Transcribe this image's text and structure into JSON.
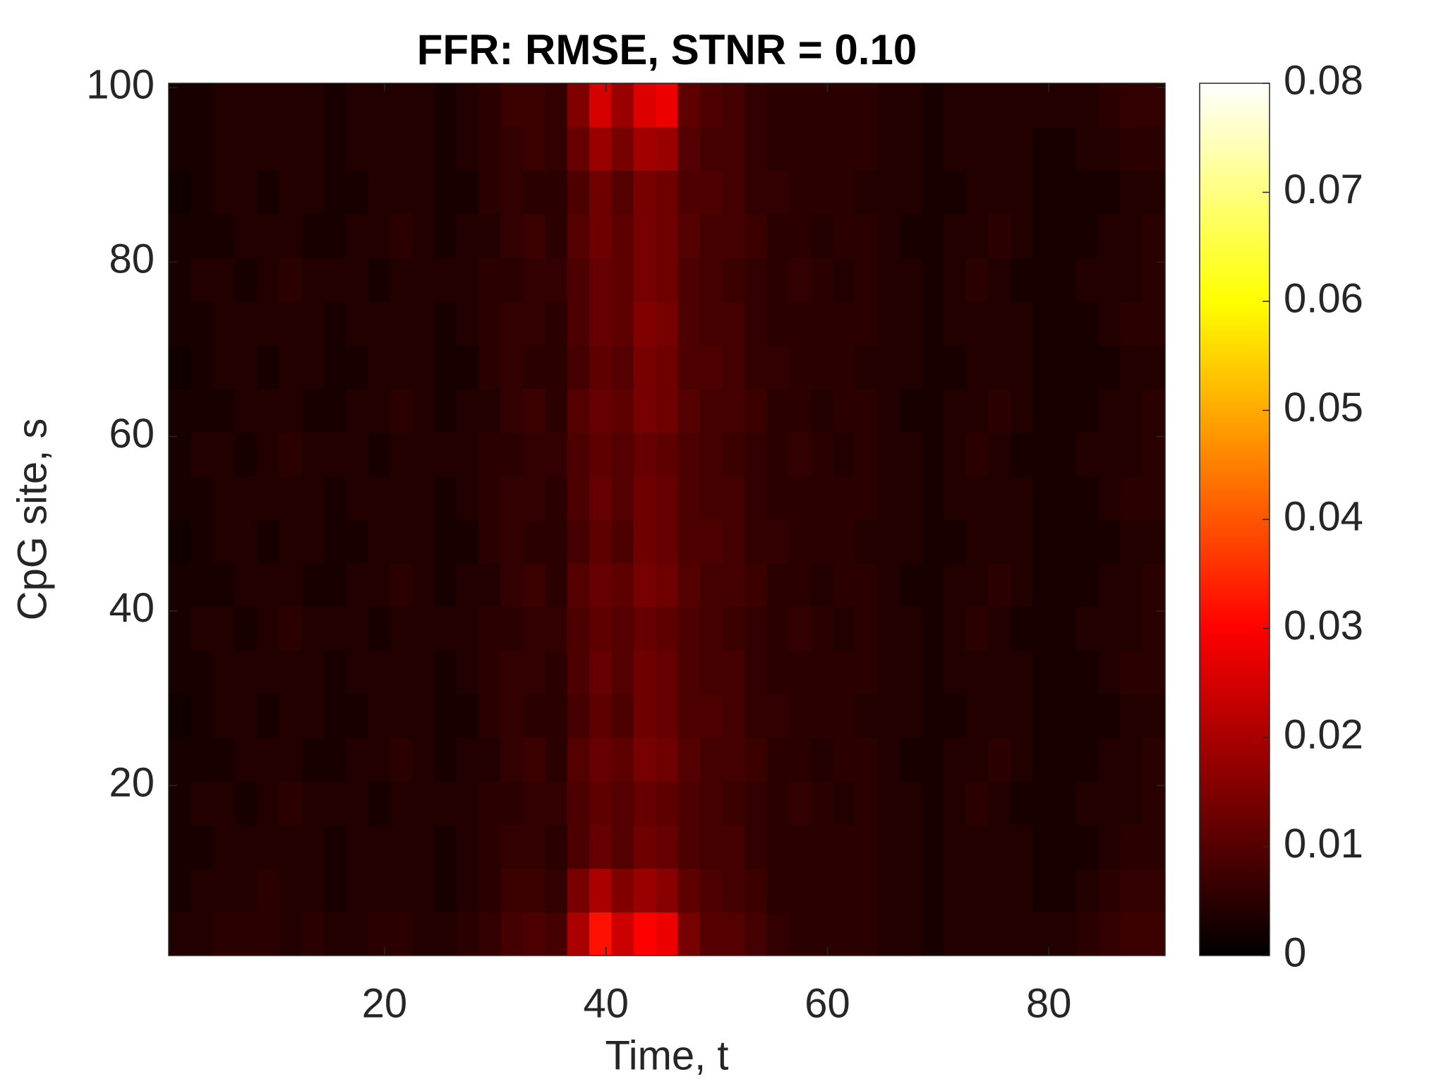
{
  "chart_data": {
    "type": "heatmap",
    "title": "FFR: RMSE, STNR = 0.10",
    "xlabel": "Time, t",
    "ylabel": "CpG site, s",
    "xlim": [
      0.5,
      90.5
    ],
    "ylim": [
      0.5,
      100.5
    ],
    "xticks": [
      20,
      40,
      60,
      80
    ],
    "yticks": [
      20,
      40,
      60,
      80,
      100
    ],
    "colormap": "hot",
    "clim": [
      0,
      0.08
    ],
    "colorbar_ticks": [
      0,
      0.01,
      0.02,
      0.03,
      0.04,
      0.05,
      0.06,
      0.07,
      0.08
    ],
    "x": [
      1.5,
      3.5,
      5.5,
      7.5,
      9.5,
      11.5,
      13.5,
      15.5,
      17.5,
      19.5,
      21.5,
      23.5,
      25.5,
      27.5,
      29.5,
      31.5,
      33.5,
      35.5,
      37.5,
      39.5,
      41.5,
      43.5,
      45.5,
      47.5,
      49.5,
      51.5,
      53.5,
      55.5,
      57.5,
      59.5,
      61.5,
      63.5,
      65.5,
      67.5,
      69.5,
      71.5,
      73.5,
      75.5,
      77.5,
      79.5,
      81.5,
      83.5,
      85.5,
      87.5,
      89.5
    ],
    "y": [
      3,
      8,
      13,
      18,
      23,
      28,
      33,
      38,
      43,
      48,
      53,
      58,
      63,
      68,
      73,
      78,
      83,
      88,
      93,
      98
    ],
    "z": [
      [
        0.004,
        0.004,
        0.005,
        0.005,
        0.005,
        0.004,
        0.005,
        0.004,
        0.004,
        0.005,
        0.005,
        0.004,
        0.004,
        0.005,
        0.006,
        0.008,
        0.009,
        0.008,
        0.02,
        0.032,
        0.024,
        0.03,
        0.028,
        0.014,
        0.01,
        0.01,
        0.008,
        0.006,
        0.005,
        0.005,
        0.005,
        0.005,
        0.004,
        0.004,
        0.003,
        0.004,
        0.004,
        0.004,
        0.004,
        0.004,
        0.004,
        0.005,
        0.006,
        0.007,
        0.007
      ],
      [
        0.003,
        0.004,
        0.004,
        0.004,
        0.005,
        0.004,
        0.004,
        0.003,
        0.004,
        0.004,
        0.004,
        0.004,
        0.003,
        0.004,
        0.005,
        0.007,
        0.007,
        0.006,
        0.014,
        0.02,
        0.015,
        0.018,
        0.016,
        0.011,
        0.009,
        0.008,
        0.007,
        0.005,
        0.005,
        0.005,
        0.005,
        0.005,
        0.004,
        0.004,
        0.003,
        0.004,
        0.004,
        0.004,
        0.004,
        0.003,
        0.003,
        0.004,
        0.005,
        0.006,
        0.006
      ],
      [
        0.003,
        0.003,
        0.004,
        0.004,
        0.004,
        0.004,
        0.004,
        0.003,
        0.004,
        0.004,
        0.004,
        0.004,
        0.003,
        0.004,
        0.005,
        0.006,
        0.006,
        0.005,
        0.009,
        0.012,
        0.01,
        0.013,
        0.012,
        0.009,
        0.008,
        0.008,
        0.006,
        0.005,
        0.005,
        0.005,
        0.005,
        0.005,
        0.004,
        0.004,
        0.003,
        0.004,
        0.004,
        0.004,
        0.004,
        0.003,
        0.003,
        0.003,
        0.004,
        0.005,
        0.005
      ],
      [
        0.003,
        0.004,
        0.004,
        0.003,
        0.004,
        0.005,
        0.004,
        0.004,
        0.004,
        0.003,
        0.004,
        0.004,
        0.004,
        0.004,
        0.005,
        0.005,
        0.006,
        0.006,
        0.009,
        0.011,
        0.01,
        0.012,
        0.011,
        0.009,
        0.008,
        0.007,
        0.006,
        0.005,
        0.006,
        0.005,
        0.004,
        0.005,
        0.004,
        0.004,
        0.003,
        0.004,
        0.005,
        0.004,
        0.003,
        0.003,
        0.003,
        0.004,
        0.004,
        0.004,
        0.005
      ],
      [
        0.003,
        0.003,
        0.003,
        0.004,
        0.004,
        0.004,
        0.003,
        0.003,
        0.004,
        0.004,
        0.005,
        0.004,
        0.003,
        0.004,
        0.004,
        0.006,
        0.007,
        0.005,
        0.01,
        0.012,
        0.011,
        0.014,
        0.013,
        0.01,
        0.008,
        0.008,
        0.007,
        0.005,
        0.005,
        0.004,
        0.005,
        0.005,
        0.004,
        0.003,
        0.003,
        0.004,
        0.004,
        0.005,
        0.004,
        0.003,
        0.003,
        0.003,
        0.004,
        0.004,
        0.005
      ],
      [
        0.002,
        0.003,
        0.004,
        0.004,
        0.003,
        0.004,
        0.004,
        0.003,
        0.003,
        0.004,
        0.004,
        0.004,
        0.003,
        0.003,
        0.005,
        0.006,
        0.005,
        0.005,
        0.008,
        0.011,
        0.009,
        0.013,
        0.012,
        0.009,
        0.009,
        0.008,
        0.006,
        0.006,
        0.005,
        0.005,
        0.005,
        0.004,
        0.004,
        0.004,
        0.003,
        0.003,
        0.004,
        0.004,
        0.004,
        0.003,
        0.003,
        0.003,
        0.003,
        0.004,
        0.004
      ],
      [
        0.003,
        0.003,
        0.004,
        0.004,
        0.004,
        0.004,
        0.004,
        0.003,
        0.004,
        0.004,
        0.004,
        0.004,
        0.003,
        0.004,
        0.005,
        0.006,
        0.006,
        0.005,
        0.009,
        0.012,
        0.01,
        0.013,
        0.012,
        0.009,
        0.008,
        0.008,
        0.006,
        0.005,
        0.005,
        0.005,
        0.005,
        0.005,
        0.004,
        0.004,
        0.003,
        0.004,
        0.004,
        0.004,
        0.004,
        0.003,
        0.003,
        0.003,
        0.004,
        0.005,
        0.005
      ],
      [
        0.003,
        0.004,
        0.004,
        0.003,
        0.004,
        0.005,
        0.004,
        0.004,
        0.004,
        0.003,
        0.004,
        0.004,
        0.004,
        0.004,
        0.005,
        0.005,
        0.006,
        0.006,
        0.009,
        0.011,
        0.01,
        0.012,
        0.011,
        0.009,
        0.008,
        0.007,
        0.006,
        0.005,
        0.006,
        0.005,
        0.004,
        0.005,
        0.004,
        0.004,
        0.003,
        0.004,
        0.005,
        0.004,
        0.003,
        0.003,
        0.003,
        0.004,
        0.004,
        0.004,
        0.005
      ],
      [
        0.003,
        0.003,
        0.003,
        0.004,
        0.004,
        0.004,
        0.003,
        0.003,
        0.004,
        0.004,
        0.005,
        0.004,
        0.003,
        0.004,
        0.004,
        0.006,
        0.007,
        0.005,
        0.01,
        0.012,
        0.011,
        0.014,
        0.013,
        0.01,
        0.008,
        0.008,
        0.007,
        0.005,
        0.005,
        0.004,
        0.005,
        0.005,
        0.004,
        0.003,
        0.003,
        0.004,
        0.004,
        0.005,
        0.004,
        0.003,
        0.003,
        0.003,
        0.004,
        0.004,
        0.005
      ],
      [
        0.002,
        0.003,
        0.004,
        0.004,
        0.003,
        0.004,
        0.004,
        0.003,
        0.003,
        0.004,
        0.004,
        0.004,
        0.003,
        0.003,
        0.005,
        0.006,
        0.005,
        0.005,
        0.008,
        0.011,
        0.009,
        0.013,
        0.012,
        0.009,
        0.009,
        0.008,
        0.006,
        0.006,
        0.005,
        0.005,
        0.005,
        0.004,
        0.004,
        0.004,
        0.003,
        0.003,
        0.004,
        0.004,
        0.004,
        0.003,
        0.003,
        0.003,
        0.003,
        0.004,
        0.004
      ],
      [
        0.003,
        0.003,
        0.004,
        0.004,
        0.004,
        0.004,
        0.004,
        0.003,
        0.004,
        0.004,
        0.004,
        0.004,
        0.003,
        0.004,
        0.005,
        0.006,
        0.006,
        0.005,
        0.009,
        0.012,
        0.01,
        0.013,
        0.012,
        0.009,
        0.008,
        0.008,
        0.006,
        0.005,
        0.005,
        0.005,
        0.005,
        0.005,
        0.004,
        0.004,
        0.003,
        0.004,
        0.004,
        0.004,
        0.004,
        0.003,
        0.003,
        0.003,
        0.004,
        0.005,
        0.005
      ],
      [
        0.003,
        0.004,
        0.004,
        0.003,
        0.004,
        0.005,
        0.004,
        0.004,
        0.004,
        0.003,
        0.004,
        0.004,
        0.004,
        0.004,
        0.005,
        0.005,
        0.006,
        0.006,
        0.009,
        0.011,
        0.01,
        0.012,
        0.011,
        0.009,
        0.008,
        0.007,
        0.006,
        0.005,
        0.006,
        0.005,
        0.004,
        0.005,
        0.004,
        0.004,
        0.003,
        0.004,
        0.005,
        0.004,
        0.003,
        0.003,
        0.003,
        0.004,
        0.004,
        0.004,
        0.005
      ],
      [
        0.003,
        0.003,
        0.003,
        0.004,
        0.004,
        0.004,
        0.003,
        0.003,
        0.004,
        0.004,
        0.005,
        0.004,
        0.003,
        0.004,
        0.004,
        0.006,
        0.007,
        0.005,
        0.01,
        0.012,
        0.011,
        0.014,
        0.013,
        0.01,
        0.008,
        0.008,
        0.007,
        0.005,
        0.005,
        0.004,
        0.005,
        0.005,
        0.004,
        0.003,
        0.003,
        0.004,
        0.004,
        0.005,
        0.004,
        0.003,
        0.003,
        0.003,
        0.004,
        0.004,
        0.005
      ],
      [
        0.002,
        0.003,
        0.004,
        0.004,
        0.003,
        0.004,
        0.004,
        0.003,
        0.003,
        0.004,
        0.004,
        0.004,
        0.003,
        0.003,
        0.005,
        0.006,
        0.005,
        0.005,
        0.008,
        0.011,
        0.01,
        0.014,
        0.013,
        0.009,
        0.009,
        0.008,
        0.006,
        0.006,
        0.005,
        0.005,
        0.005,
        0.004,
        0.004,
        0.004,
        0.003,
        0.003,
        0.004,
        0.004,
        0.004,
        0.003,
        0.003,
        0.003,
        0.003,
        0.004,
        0.004
      ],
      [
        0.003,
        0.003,
        0.004,
        0.004,
        0.004,
        0.004,
        0.004,
        0.003,
        0.004,
        0.004,
        0.004,
        0.004,
        0.003,
        0.004,
        0.005,
        0.006,
        0.006,
        0.005,
        0.009,
        0.012,
        0.011,
        0.015,
        0.014,
        0.009,
        0.008,
        0.008,
        0.006,
        0.005,
        0.005,
        0.005,
        0.005,
        0.005,
        0.004,
        0.004,
        0.003,
        0.004,
        0.004,
        0.004,
        0.004,
        0.003,
        0.003,
        0.003,
        0.004,
        0.005,
        0.005
      ],
      [
        0.003,
        0.004,
        0.004,
        0.003,
        0.004,
        0.005,
        0.004,
        0.004,
        0.004,
        0.003,
        0.004,
        0.004,
        0.004,
        0.004,
        0.005,
        0.005,
        0.006,
        0.006,
        0.009,
        0.012,
        0.011,
        0.014,
        0.013,
        0.009,
        0.008,
        0.007,
        0.006,
        0.005,
        0.006,
        0.005,
        0.004,
        0.005,
        0.004,
        0.004,
        0.003,
        0.004,
        0.005,
        0.004,
        0.003,
        0.003,
        0.003,
        0.004,
        0.004,
        0.004,
        0.005
      ],
      [
        0.003,
        0.003,
        0.003,
        0.004,
        0.004,
        0.004,
        0.003,
        0.003,
        0.004,
        0.004,
        0.005,
        0.004,
        0.003,
        0.004,
        0.004,
        0.006,
        0.007,
        0.005,
        0.01,
        0.013,
        0.011,
        0.014,
        0.013,
        0.01,
        0.008,
        0.008,
        0.007,
        0.005,
        0.005,
        0.004,
        0.005,
        0.005,
        0.004,
        0.003,
        0.003,
        0.004,
        0.004,
        0.005,
        0.004,
        0.003,
        0.003,
        0.003,
        0.004,
        0.004,
        0.005
      ],
      [
        0.002,
        0.003,
        0.004,
        0.004,
        0.003,
        0.004,
        0.004,
        0.003,
        0.003,
        0.004,
        0.004,
        0.004,
        0.003,
        0.003,
        0.005,
        0.006,
        0.005,
        0.005,
        0.009,
        0.013,
        0.01,
        0.014,
        0.013,
        0.009,
        0.009,
        0.008,
        0.006,
        0.006,
        0.005,
        0.005,
        0.005,
        0.004,
        0.004,
        0.004,
        0.003,
        0.003,
        0.004,
        0.004,
        0.004,
        0.003,
        0.003,
        0.003,
        0.003,
        0.004,
        0.004
      ],
      [
        0.003,
        0.003,
        0.004,
        0.004,
        0.004,
        0.004,
        0.004,
        0.003,
        0.004,
        0.004,
        0.004,
        0.004,
        0.003,
        0.004,
        0.005,
        0.006,
        0.007,
        0.006,
        0.012,
        0.018,
        0.014,
        0.019,
        0.018,
        0.01,
        0.008,
        0.008,
        0.006,
        0.005,
        0.005,
        0.005,
        0.005,
        0.005,
        0.004,
        0.004,
        0.003,
        0.004,
        0.004,
        0.004,
        0.004,
        0.003,
        0.003,
        0.004,
        0.004,
        0.005,
        0.005
      ],
      [
        0.003,
        0.003,
        0.004,
        0.004,
        0.004,
        0.004,
        0.004,
        0.003,
        0.004,
        0.004,
        0.004,
        0.004,
        0.003,
        0.004,
        0.005,
        0.007,
        0.007,
        0.006,
        0.015,
        0.025,
        0.018,
        0.026,
        0.028,
        0.011,
        0.009,
        0.008,
        0.006,
        0.005,
        0.005,
        0.005,
        0.005,
        0.005,
        0.004,
        0.004,
        0.003,
        0.004,
        0.004,
        0.004,
        0.004,
        0.004,
        0.004,
        0.004,
        0.005,
        0.006,
        0.006
      ]
    ]
  }
}
